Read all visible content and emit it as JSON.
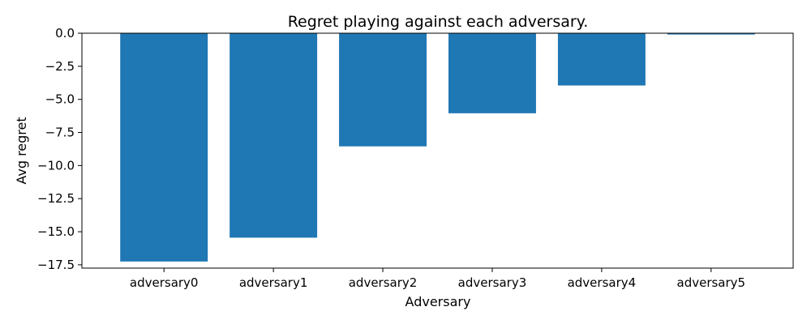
{
  "chart_data": {
    "type": "bar",
    "title": "Regret playing against each adversary.",
    "xlabel": "Adversary",
    "ylabel": "Avg regret",
    "categories": [
      "adversary0",
      "adversary1",
      "adversary2",
      "adversary3",
      "adversary4",
      "adversary5"
    ],
    "values": [
      -17.25,
      -15.45,
      -8.55,
      -6.05,
      -3.95,
      -0.1
    ],
    "ylim": [
      -17.75,
      0.0
    ],
    "yticks": [
      0.0,
      -2.5,
      -5.0,
      -7.5,
      -10.0,
      -12.5,
      -15.0,
      -17.5
    ],
    "ytick_labels": [
      "0.0",
      "−2.5",
      "−5.0",
      "−7.5",
      "−10.0",
      "−12.5",
      "−15.0",
      "−17.5"
    ],
    "grid": false,
    "bar_color": "#1f77b4"
  }
}
